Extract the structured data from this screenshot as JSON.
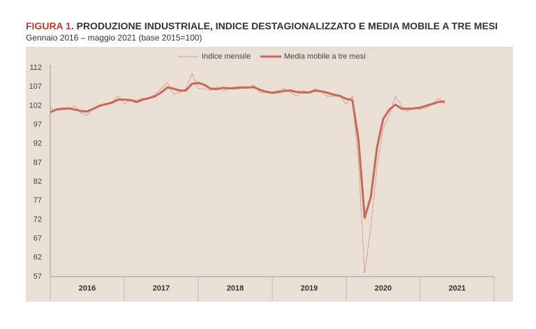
{
  "chart_data": {
    "type": "line",
    "figure_label": "FIGURA 1.",
    "title": "PRODUZIONE INDUSTRIALE, INDICE DESTAGIONALIZZATO E MEDIA MOBILE A TRE MESI",
    "subtitle": "Gennaio 2016 – maggio 2021 (base 2015=100)",
    "categories": [
      null,
      null,
      null,
      null,
      null,
      null,
      "2016",
      null,
      null,
      null,
      null,
      null,
      null,
      null,
      null,
      null,
      null,
      null,
      "2017",
      null,
      null,
      null,
      null,
      null,
      null,
      null,
      null,
      null,
      null,
      null,
      "2018",
      null,
      null,
      null,
      null,
      null,
      null,
      null,
      null,
      null,
      null,
      null,
      "2019",
      null,
      null,
      null,
      null,
      null,
      null,
      null,
      null,
      null,
      null,
      null,
      "2020",
      null,
      null,
      null,
      null,
      null,
      null,
      null,
      null,
      null,
      null,
      null,
      "2021",
      null,
      null,
      null,
      null,
      null
    ],
    "series": [
      {
        "name": "Indice mensile",
        "color": "#c8675a",
        "style": "dotted",
        "values": [
          101.5,
          100.8,
          101.5,
          101,
          102,
          100,
          99.5,
          101.5,
          102,
          102.5,
          103,
          104.5,
          102.5,
          103.5,
          103.5,
          104,
          104,
          105,
          106.5,
          108,
          105,
          105.5,
          106.5,
          110.5,
          106.5,
          106.5,
          106,
          107,
          106,
          106.5,
          107,
          107,
          106.5,
          107.5,
          105.5,
          105.5,
          105.5,
          106,
          106.5,
          105.5,
          104.5,
          106,
          105.5,
          106.5,
          105.5,
          104.5,
          104.5,
          104.5,
          102.5,
          104.5,
          87,
          58,
          70,
          86,
          96,
          99.5,
          104.5,
          102,
          100.5,
          101.5,
          101,
          101.5,
          102.5,
          104,
          102.5,
          null,
          null,
          null,
          null,
          null,
          null,
          null
        ]
      },
      {
        "name": "Media mobile a tre mesi",
        "color": "#c8675a",
        "style": "solid",
        "values": [
          100.3,
          101,
          101.2,
          101.3,
          101,
          100.6,
          100.5,
          101.2,
          102,
          102.4,
          102.8,
          103.6,
          103.6,
          103.5,
          103,
          103.6,
          104,
          104.5,
          105.5,
          106.8,
          106.5,
          106,
          106,
          107.8,
          108,
          107.5,
          106.5,
          106.4,
          106.7,
          106.6,
          106.6,
          106.8,
          106.8,
          106.9,
          106.2,
          105.7,
          105.4,
          105.6,
          105.9,
          106,
          105.6,
          105.5,
          105.5,
          106,
          105.8,
          105.4,
          104.9,
          104.6,
          103.8,
          103.5,
          93,
          72.5,
          78,
          91,
          98.5,
          101,
          102.3,
          101.2,
          101.2,
          101.3,
          101.5,
          102,
          102.5,
          103,
          103.1,
          null,
          null,
          null,
          null,
          null,
          null,
          null
        ]
      }
    ],
    "ylim": [
      57,
      112
    ],
    "yticks": [
      57,
      62,
      67,
      72,
      77,
      82,
      87,
      92,
      97,
      102,
      107,
      112
    ],
    "grid": false,
    "legend": "top"
  }
}
